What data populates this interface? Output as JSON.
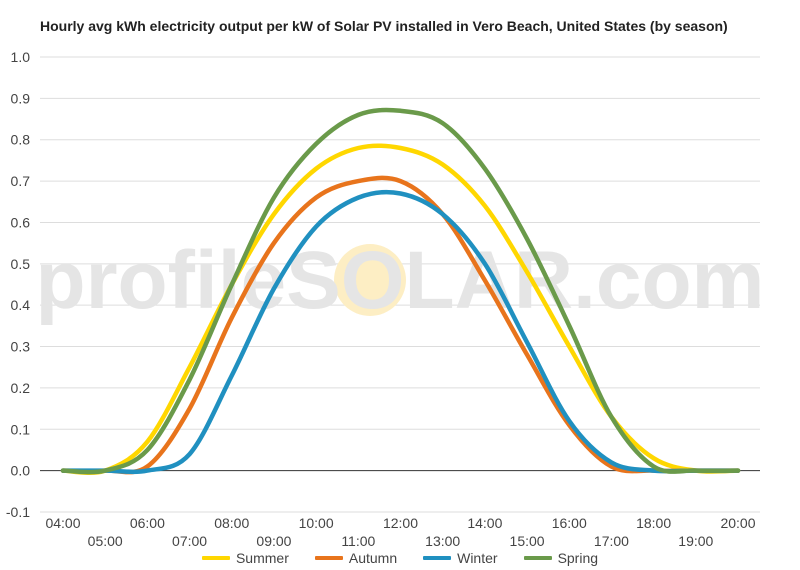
{
  "chart_data": {
    "type": "line",
    "title": "Hourly avg kWh electricity output per kW of Solar PV installed in Vero Beach, United States (by season)",
    "watermark": "profileSOLAR.com",
    "xlabel": "",
    "ylabel": "",
    "ylim": [
      -0.1,
      1.0
    ],
    "yticks": [
      "1.0",
      "0.9",
      "0.8",
      "0.7",
      "0.6",
      "0.5",
      "0.4",
      "0.3",
      "0.2",
      "0.1",
      "0.0",
      "-0.1"
    ],
    "yticks_values": [
      1.0,
      0.9,
      0.8,
      0.7,
      0.6,
      0.5,
      0.4,
      0.3,
      0.2,
      0.1,
      0.0,
      -0.1
    ],
    "xlim": [
      4,
      20
    ],
    "xticks_upper": [
      "04:00",
      "06:00",
      "08:00",
      "10:00",
      "12:00",
      "14:00",
      "16:00",
      "18:00",
      "20:00"
    ],
    "xticks_upper_values": [
      4,
      6,
      8,
      10,
      12,
      14,
      16,
      18,
      20
    ],
    "xticks_lower": [
      "05:00",
      "07:00",
      "09:00",
      "11:00",
      "13:00",
      "15:00",
      "17:00",
      "19:00"
    ],
    "xticks_lower_values": [
      5,
      7,
      9,
      11,
      13,
      15,
      17,
      19
    ],
    "grid": true,
    "legend_position": "bottom",
    "x": [
      4,
      5,
      6,
      7,
      8,
      9,
      10,
      11,
      12,
      13,
      14,
      15,
      16,
      17,
      18,
      19,
      20
    ],
    "series": [
      {
        "name": "Summer",
        "color": "#FFD700",
        "values": [
          0.0,
          0.0,
          0.07,
          0.25,
          0.45,
          0.62,
          0.73,
          0.78,
          0.78,
          0.74,
          0.64,
          0.48,
          0.3,
          0.13,
          0.03,
          0.0,
          0.0
        ]
      },
      {
        "name": "Autumn",
        "color": "#E8741C",
        "values": [
          0.0,
          0.0,
          0.01,
          0.15,
          0.37,
          0.55,
          0.66,
          0.7,
          0.7,
          0.62,
          0.46,
          0.28,
          0.11,
          0.01,
          0.0,
          0.0,
          0.0
        ]
      },
      {
        "name": "Winter",
        "color": "#2090C0",
        "values": [
          0.0,
          0.0,
          0.0,
          0.04,
          0.23,
          0.44,
          0.59,
          0.66,
          0.67,
          0.62,
          0.5,
          0.31,
          0.12,
          0.02,
          0.0,
          0.0,
          0.0
        ]
      },
      {
        "name": "Spring",
        "color": "#6A9A4A",
        "values": [
          0.0,
          0.0,
          0.05,
          0.22,
          0.45,
          0.66,
          0.79,
          0.86,
          0.87,
          0.84,
          0.73,
          0.56,
          0.35,
          0.13,
          0.01,
          0.0,
          0.0
        ]
      }
    ]
  },
  "colors": {
    "grid": "#dddddd",
    "axis_text": "#444444",
    "watermark": "#e5e5e5",
    "watermark_sun": "#fdeec4"
  }
}
